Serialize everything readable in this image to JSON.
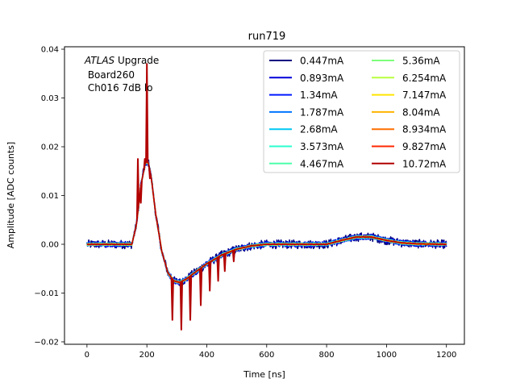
{
  "chart_data": {
    "type": "line",
    "title": "run719",
    "xlabel": "Time [ns]",
    "ylabel": "Amplitude [ADC counts]",
    "xlim": [
      -75,
      1260
    ],
    "ylim": [
      -0.0205,
      0.0405
    ],
    "xticks": [
      0,
      200,
      400,
      600,
      800,
      1000,
      1200
    ],
    "xtick_labels": [
      "0",
      "200",
      "400",
      "600",
      "800",
      "1000",
      "1200"
    ],
    "yticks": [
      -0.02,
      -0.01,
      0.0,
      0.01,
      0.02,
      0.03,
      0.04
    ],
    "ytick_labels": [
      "−0.02",
      "−0.01",
      "0.00",
      "0.01",
      "0.02",
      "0.03",
      "0.04"
    ],
    "grid": false,
    "legend_position": "top-right",
    "legend_columns": 2,
    "annotation": {
      "line1_italic": "ATLAS",
      "line1_rest": " Upgrade",
      "line2": " Board260",
      "line3": " Ch016 7dB lo"
    },
    "pulse_shape_points": {
      "x": [
        0,
        150,
        165,
        180,
        195,
        205,
        215,
        230,
        250,
        270,
        290,
        310,
        330,
        360,
        400,
        450,
        500,
        550,
        600,
        700,
        800,
        850,
        900,
        950,
        1000,
        1050,
        1100,
        1200
      ],
      "y": [
        0.0,
        0.0,
        0.004,
        0.012,
        0.0168,
        0.0168,
        0.0135,
        0.006,
        -0.0015,
        -0.0058,
        -0.0075,
        -0.0078,
        -0.0072,
        -0.0058,
        -0.004,
        -0.0022,
        -0.001,
        -0.0003,
        0.0,
        0.0,
        0.0,
        0.0008,
        0.0015,
        0.0015,
        0.0008,
        0.0003,
        0.0001,
        0.0
      ]
    },
    "series": [
      {
        "name": "0.447mA",
        "color": "#00007f",
        "noise": 0.0009
      },
      {
        "name": "0.893mA",
        "color": "#0000d9",
        "noise": 0.0006
      },
      {
        "name": "1.34mA",
        "color": "#0019ff",
        "noise": 0.0005
      },
      {
        "name": "1.787mA",
        "color": "#0074ff",
        "noise": 0.0004
      },
      {
        "name": "2.68mA",
        "color": "#00c8f4",
        "noise": 0.0003
      },
      {
        "name": "3.573mA",
        "color": "#29ffce",
        "noise": 0.00025
      },
      {
        "name": "4.467mA",
        "color": "#4cffab",
        "noise": 0.0002
      },
      {
        "name": "5.36mA",
        "color": "#7dff7a",
        "noise": 0.0002
      },
      {
        "name": "6.254mA",
        "color": "#b8ff3e",
        "noise": 0.00018
      },
      {
        "name": "7.147mA",
        "color": "#ffe500",
        "noise": 0.00015
      },
      {
        "name": "8.04mA",
        "color": "#ffb300",
        "noise": 0.00012
      },
      {
        "name": "8.934mA",
        "color": "#ff6f00",
        "noise": 0.0001
      },
      {
        "name": "9.827mA",
        "color": "#ff2800",
        "noise": 8e-05
      },
      {
        "name": "10.72mA",
        "color": "#b20000",
        "noise": 6e-05
      }
    ],
    "spikes": [
      {
        "x": 170,
        "y": 0.0175
      },
      {
        "x": 180,
        "y": 0.0085
      },
      {
        "x": 193,
        "y": 0.0175
      },
      {
        "x": 200,
        "y": 0.037
      },
      {
        "x": 210,
        "y": 0.0135
      },
      {
        "x": 285,
        "y": -0.0155
      },
      {
        "x": 315,
        "y": -0.0175
      },
      {
        "x": 345,
        "y": -0.0155
      },
      {
        "x": 380,
        "y": -0.0125
      },
      {
        "x": 410,
        "y": -0.0095
      },
      {
        "x": 438,
        "y": -0.0075
      },
      {
        "x": 460,
        "y": -0.0055
      },
      {
        "x": 490,
        "y": -0.0035
      }
    ]
  }
}
